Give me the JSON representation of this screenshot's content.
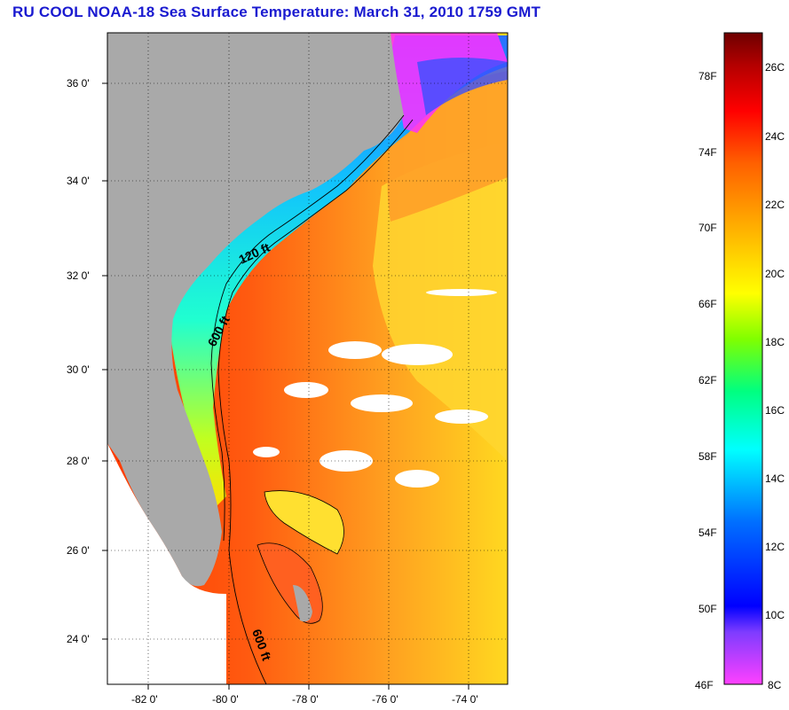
{
  "title": "RU COOL  NOAA-18  Sea Surface Temperature:  March 31, 2010 1759 GMT",
  "map": {
    "lat_labels": [
      "36 0'",
      "34 0'",
      "32 0'",
      "30 0'",
      "28 0'",
      "26 0'",
      "24 0'"
    ],
    "lon_labels": [
      "-82 0'",
      "-80 0'",
      "-78 0'",
      "-76 0'",
      "-74 0'"
    ],
    "contours": [
      "120 ft",
      "600 ft",
      "600 ft"
    ],
    "colors": {
      "land": "#a9a9a9",
      "ocean_none": "#ffffff",
      "cloud": "#ffffff"
    }
  },
  "colorbar": {
    "f_labels": [
      "78F",
      "74F",
      "70F",
      "66F",
      "62F",
      "58F",
      "54F",
      "50F",
      "46F"
    ],
    "c_labels": [
      "26C",
      "24C",
      "22C",
      "20C",
      "18C",
      "16C",
      "14C",
      "12C",
      "10C",
      "8C"
    ],
    "stops": [
      "#ff40ff",
      "#7e3cff",
      "#0000ff",
      "#0070ff",
      "#00ffff",
      "#00ff80",
      "#80ff00",
      "#ffff00",
      "#ffb000",
      "#ff6000",
      "#ff0000",
      "#b40000",
      "#6e0000"
    ]
  }
}
